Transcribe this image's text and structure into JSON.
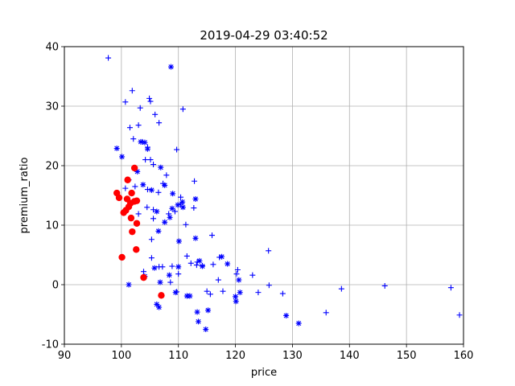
{
  "chart_data": {
    "type": "scatter",
    "title": "2019-04-29 03:40:52",
    "xlabel": "price",
    "ylabel": "premium_ratio",
    "xlim": [
      90,
      160
    ],
    "ylim": [
      -10,
      40
    ],
    "x_ticks": [
      90,
      100,
      110,
      120,
      130,
      140,
      150,
      160
    ],
    "y_ticks": [
      -10,
      0,
      10,
      20,
      30,
      40
    ],
    "grid": true,
    "colors": {
      "plus": "#0000ff",
      "star": "#0000ff",
      "dot": "#ff0000",
      "grid": "#b0b0b0"
    },
    "series": [
      {
        "marker": "plus",
        "points": [
          [
            97.7,
            38.1
          ],
          [
            100.7,
            30.7
          ],
          [
            101.9,
            32.6
          ],
          [
            101.5,
            26.4
          ],
          [
            103.3,
            29.7
          ],
          [
            104.9,
            31.3
          ],
          [
            105.1,
            30.8
          ],
          [
            103.0,
            26.8
          ],
          [
            105.9,
            28.6
          ],
          [
            106.6,
            27.2
          ],
          [
            110.8,
            29.5
          ],
          [
            102.1,
            24.5
          ],
          [
            103.7,
            24.0
          ],
          [
            104.6,
            23.1
          ],
          [
            104.2,
            21.0
          ],
          [
            105.1,
            21.0
          ],
          [
            105.6,
            20.2
          ],
          [
            107.9,
            18.4
          ],
          [
            109.7,
            22.7
          ],
          [
            101.3,
            17.6
          ],
          [
            102.4,
            16.5
          ],
          [
            100.7,
            16.2
          ],
          [
            104.6,
            16.0
          ],
          [
            107.3,
            17.0
          ],
          [
            106.5,
            15.5
          ],
          [
            110.4,
            14.7
          ],
          [
            112.8,
            17.4
          ],
          [
            112.7,
            12.9
          ],
          [
            111.3,
            10.1
          ],
          [
            103.0,
            11.9
          ],
          [
            105.6,
            11.1
          ],
          [
            108.3,
            11.9
          ],
          [
            110.4,
            13.5
          ],
          [
            104.5,
            13.0
          ],
          [
            105.6,
            12.6
          ],
          [
            109.4,
            12.3
          ],
          [
            105.3,
            7.6
          ],
          [
            105.3,
            4.5
          ],
          [
            107.2,
            3.0
          ],
          [
            106.6,
            3.0
          ],
          [
            108.9,
            3.1
          ],
          [
            110.0,
            1.8
          ],
          [
            111.5,
            4.8
          ],
          [
            112.2,
            3.6
          ],
          [
            113.3,
            3.8
          ],
          [
            114.2,
            3.2
          ],
          [
            115.9,
            8.3
          ],
          [
            116.1,
            3.4
          ],
          [
            117.2,
            4.6
          ],
          [
            120.4,
            2.5
          ],
          [
            120.2,
            1.8
          ],
          [
            123.0,
            1.6
          ],
          [
            117.0,
            0.8
          ],
          [
            117.8,
            -1.1
          ],
          [
            108.6,
            0.4
          ],
          [
            109.7,
            -1.2
          ],
          [
            115.0,
            -1.1
          ],
          [
            115.6,
            -1.6
          ],
          [
            124.0,
            -1.3
          ],
          [
            125.9,
            -0.1
          ],
          [
            128.3,
            -1.5
          ],
          [
            125.8,
            5.7
          ],
          [
            135.9,
            -4.7
          ],
          [
            138.6,
            -0.7
          ],
          [
            146.2,
            -0.2
          ],
          [
            157.8,
            -0.5
          ],
          [
            159.3,
            -5.1
          ],
          [
            113.2,
            3.3
          ],
          [
            103.9,
            2.2
          ]
        ]
      },
      {
        "marker": "star",
        "points": [
          [
            108.7,
            36.6
          ],
          [
            99.2,
            22.9
          ],
          [
            100.1,
            21.5
          ],
          [
            103.4,
            24.0
          ],
          [
            104.1,
            23.9
          ],
          [
            104.6,
            22.8
          ],
          [
            102.8,
            19.0
          ],
          [
            106.9,
            19.7
          ],
          [
            103.8,
            16.8
          ],
          [
            105.3,
            15.9
          ],
          [
            107.6,
            16.7
          ],
          [
            109.0,
            15.3
          ],
          [
            110.7,
            13.9
          ],
          [
            113.0,
            14.4
          ],
          [
            108.9,
            12.8
          ],
          [
            109.9,
            13.4
          ],
          [
            110.8,
            13.0
          ],
          [
            106.2,
            12.3
          ],
          [
            107.6,
            10.5
          ],
          [
            108.5,
            11.3
          ],
          [
            110.1,
            7.3
          ],
          [
            106.5,
            9.0
          ],
          [
            113.0,
            7.8
          ],
          [
            105.8,
            2.8
          ],
          [
            110.0,
            3.0
          ],
          [
            113.7,
            4.0
          ],
          [
            114.2,
            3.1
          ],
          [
            117.6,
            4.7
          ],
          [
            118.6,
            3.5
          ],
          [
            120.6,
            0.8
          ],
          [
            108.4,
            1.6
          ],
          [
            106.8,
            0.4
          ],
          [
            101.3,
            0.0
          ],
          [
            109.5,
            -1.3
          ],
          [
            111.5,
            -1.9
          ],
          [
            112.0,
            -1.9
          ],
          [
            120.8,
            -1.3
          ],
          [
            120.0,
            -2.0
          ],
          [
            120.1,
            -2.8
          ],
          [
            106.2,
            -3.3
          ],
          [
            106.6,
            -3.8
          ],
          [
            113.3,
            -4.6
          ],
          [
            115.2,
            -4.3
          ],
          [
            113.5,
            -6.2
          ],
          [
            114.8,
            -7.5
          ],
          [
            128.9,
            -5.2
          ],
          [
            131.1,
            -6.5
          ],
          [
            104.1,
            1.4
          ]
        ]
      },
      {
        "marker": "dot",
        "points": [
          [
            102.3,
            19.6
          ],
          [
            101.1,
            17.6
          ],
          [
            101.8,
            15.4
          ],
          [
            99.2,
            15.4
          ],
          [
            99.6,
            14.6
          ],
          [
            101.0,
            14.4
          ],
          [
            102.3,
            14.0
          ],
          [
            102.7,
            14.1
          ],
          [
            101.6,
            13.7
          ],
          [
            100.8,
            12.5
          ],
          [
            100.4,
            12.1
          ],
          [
            101.3,
            13.1
          ],
          [
            101.7,
            11.2
          ],
          [
            102.7,
            10.3
          ],
          [
            101.9,
            8.9
          ],
          [
            102.6,
            5.9
          ],
          [
            100.1,
            4.6
          ],
          [
            103.9,
            1.2
          ],
          [
            107.0,
            -1.8
          ]
        ]
      }
    ]
  }
}
